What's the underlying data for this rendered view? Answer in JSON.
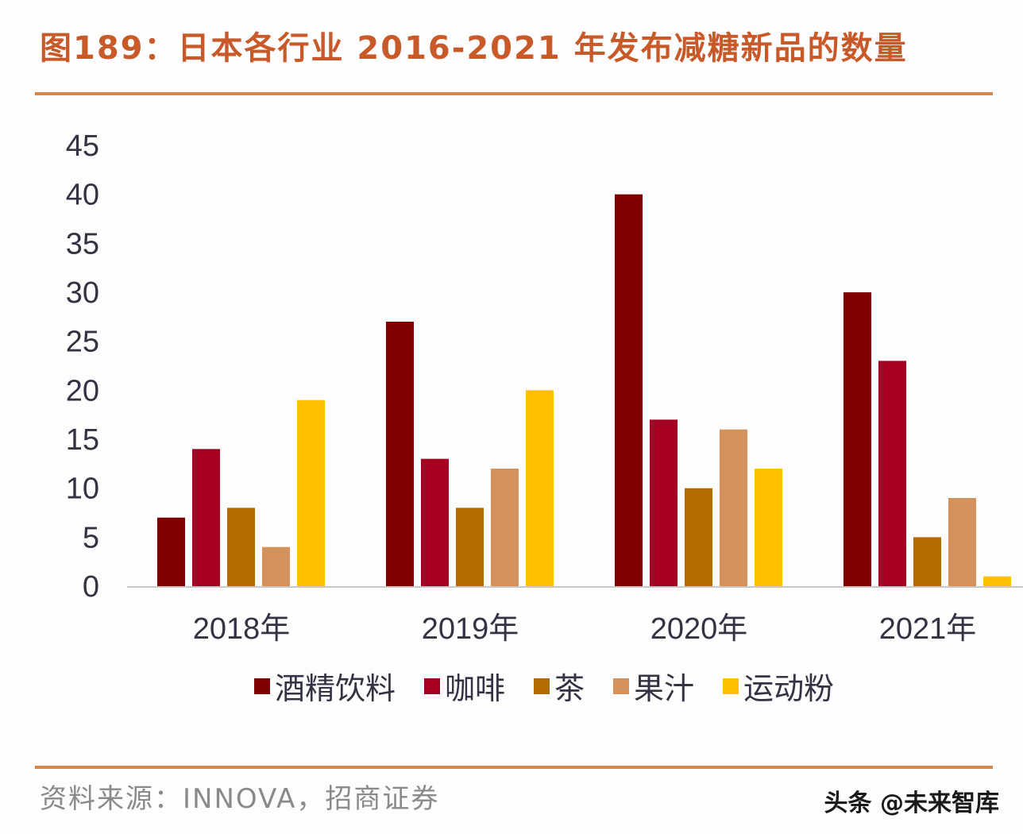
{
  "title": "图189：日本各行业 2016-2021 年发布减糖新品的数量",
  "source": "资料来源：INNOVA，招商证券",
  "watermark": "头条 @未来智库",
  "chart_data": {
    "type": "bar",
    "title": "图189：日本各行业 2016-2021 年发布减糖新品的数量",
    "xlabel": "",
    "ylabel": "",
    "categories": [
      "2018年",
      "2019年",
      "2020年",
      "2021年"
    ],
    "ylim": [
      0,
      45
    ],
    "yticks": [
      0,
      5,
      10,
      15,
      20,
      25,
      30,
      35,
      40,
      45
    ],
    "grid": false,
    "legend_position": "bottom",
    "series": [
      {
        "name": "酒精饮料",
        "color": "#7f0000",
        "values": [
          7,
          27,
          40,
          30
        ]
      },
      {
        "name": "咖啡",
        "color": "#a50021",
        "values": [
          14,
          13,
          17,
          23
        ]
      },
      {
        "name": "茶",
        "color": "#b36b00",
        "values": [
          8,
          8,
          10,
          5
        ]
      },
      {
        "name": "果汁",
        "color": "#d3925c",
        "values": [
          4,
          12,
          16,
          9
        ]
      },
      {
        "name": "运动粉",
        "color": "#ffc000",
        "values": [
          19,
          20,
          12,
          1
        ]
      }
    ]
  }
}
